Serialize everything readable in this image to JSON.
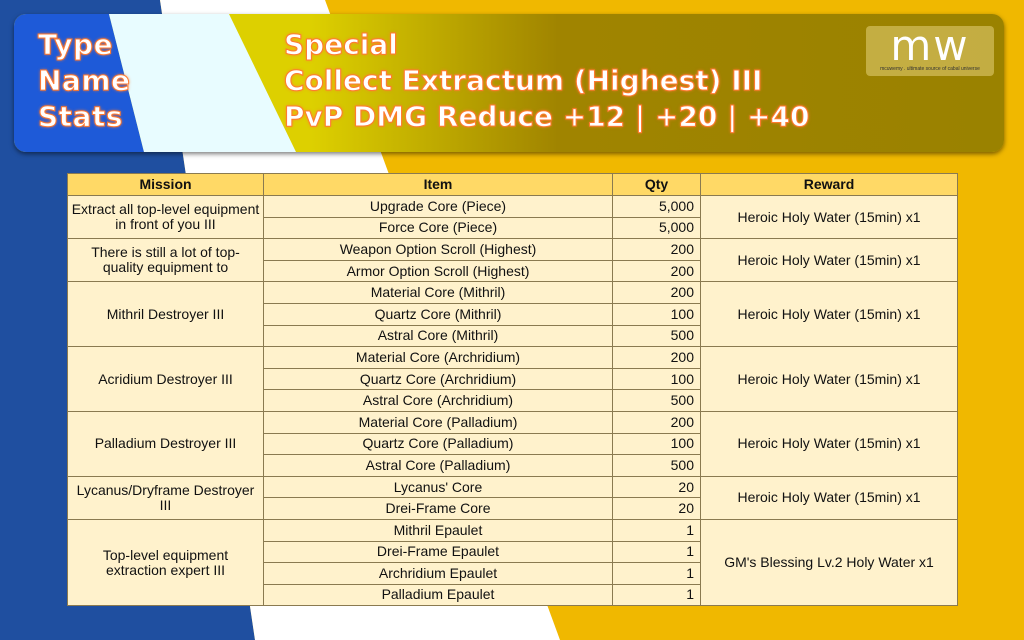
{
  "header": {
    "labels": [
      "Type",
      "Name",
      "Stats"
    ],
    "type": "Special",
    "name": "Collect Extractum (Highest) III",
    "stats": "PvP DMG Reduce +12 | +20 | +40"
  },
  "logo": {
    "text": "mw",
    "tagline": "mcuwemy . ultimate source of cabal universe"
  },
  "colors": {
    "blue": "#1f4fa0",
    "yellow": "#f0b800",
    "header_row": "#ffd966",
    "cell": "#fff2cc"
  },
  "table": {
    "columns": [
      "Mission",
      "Item",
      "Qty",
      "Reward"
    ],
    "groups": [
      {
        "mission": "Extract all top-level equipment in front of you III",
        "reward": "Heroic Holy Water (15min) x1",
        "items": [
          [
            "Upgrade Core (Piece)",
            "5,000"
          ],
          [
            "Force Core (Piece)",
            "5,000"
          ]
        ]
      },
      {
        "mission": "There is still a lot of top-quality equipment to",
        "reward": "Heroic Holy Water (15min) x1",
        "items": [
          [
            "Weapon Option Scroll (Highest)",
            "200"
          ],
          [
            "Armor Option Scroll (Highest)",
            "200"
          ]
        ]
      },
      {
        "mission": "Mithril Destroyer III",
        "reward": "Heroic Holy Water (15min) x1",
        "items": [
          [
            "Material Core (Mithril)",
            "200"
          ],
          [
            "Quartz Core (Mithril)",
            "100"
          ],
          [
            "Astral Core (Mithril)",
            "500"
          ]
        ]
      },
      {
        "mission": "Acridium Destroyer III",
        "reward": "Heroic Holy Water (15min) x1",
        "items": [
          [
            "Material Core (Archridium)",
            "200"
          ],
          [
            "Quartz Core (Archridium)",
            "100"
          ],
          [
            "Astral Core (Archridium)",
            "500"
          ]
        ]
      },
      {
        "mission": "Palladium Destroyer III",
        "reward": "Heroic Holy Water (15min) x1",
        "items": [
          [
            "Material Core (Palladium)",
            "200"
          ],
          [
            "Quartz Core (Palladium)",
            "100"
          ],
          [
            "Astral Core (Palladium)",
            "500"
          ]
        ]
      },
      {
        "mission": "Lycanus/Dryframe Destroyer III",
        "reward": "Heroic Holy Water (15min) x1",
        "items": [
          [
            "Lycanus' Core",
            "20"
          ],
          [
            "Drei-Frame Core",
            "20"
          ]
        ]
      },
      {
        "mission": "Top-level equipment extraction expert III",
        "reward": "GM's Blessing Lv.2 Holy Water x1",
        "items": [
          [
            "Mithril Epaulet",
            "1"
          ],
          [
            "Drei-Frame Epaulet",
            "1"
          ],
          [
            "Archridium Epaulet",
            "1"
          ],
          [
            "Palladium Epaulet",
            "1"
          ]
        ]
      }
    ]
  }
}
